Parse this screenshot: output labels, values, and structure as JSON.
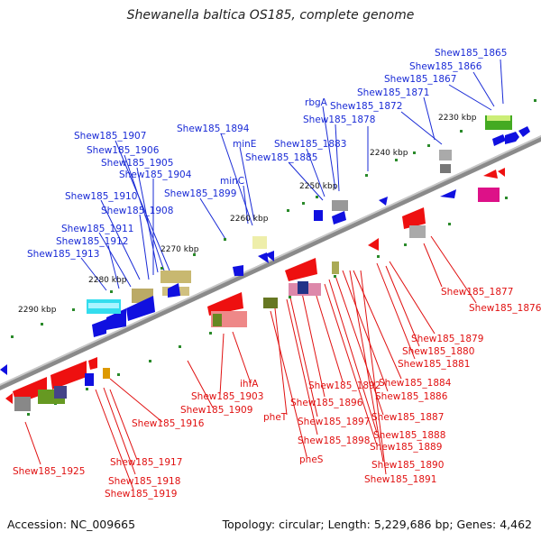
{
  "title": "Shewanella baltica OS185, complete genome",
  "footer": {
    "accession": "Accession: NC_009665",
    "topology": "Topology: circular; Length: 5,229,686 bp; Genes: 4,462"
  },
  "colors": {
    "upper_gene_labels": "#1a2bd6",
    "lower_gene_labels": "#e01010",
    "backbone": "#8a8a8a",
    "forward_arrows": "#1010e0",
    "reverse_arrows": "#ee1010"
  },
  "kbp_ticks": [
    "2230 kbp",
    "2240 kbp",
    "2250 kbp",
    "2260 kbp",
    "2270 kbp",
    "2280 kbp",
    "2290 kbp"
  ],
  "upper_labels": [
    "Shew185_1865",
    "Shew185_1866",
    "Shew185_1867",
    "Shew185_1871",
    "Shew185_1872",
    "rbgA",
    "Shew185_1878",
    "Shew185_1883",
    "Shew185_1885",
    "minE",
    "minC",
    "Shew185_1894",
    "Shew185_1899",
    "Shew185_1907",
    "Shew185_1906",
    "Shew185_1905",
    "Shew185_1904",
    "Shew185_1910",
    "Shew185_1908",
    "Shew185_1911",
    "Shew185_1912",
    "Shew185_1913"
  ],
  "lower_labels": [
    "Shew185_1877",
    "Shew185_1876",
    "Shew185_1879",
    "Shew185_1880",
    "Shew185_1881",
    "Shew185_1884",
    "Shew185_1886",
    "Shew185_1887",
    "Shew185_1888",
    "Shew185_1889",
    "Shew185_1890",
    "Shew185_1891",
    "Shew185_1892",
    "Shew185_1896",
    "Shew185_1897",
    "Shew185_1898",
    "pheS",
    "pheT",
    "ihfA",
    "Shew185_1903",
    "Shew185_1909",
    "Shew185_1916",
    "Shew185_1917",
    "Shew185_1918",
    "Shew185_1919",
    "Shew185_1925"
  ]
}
